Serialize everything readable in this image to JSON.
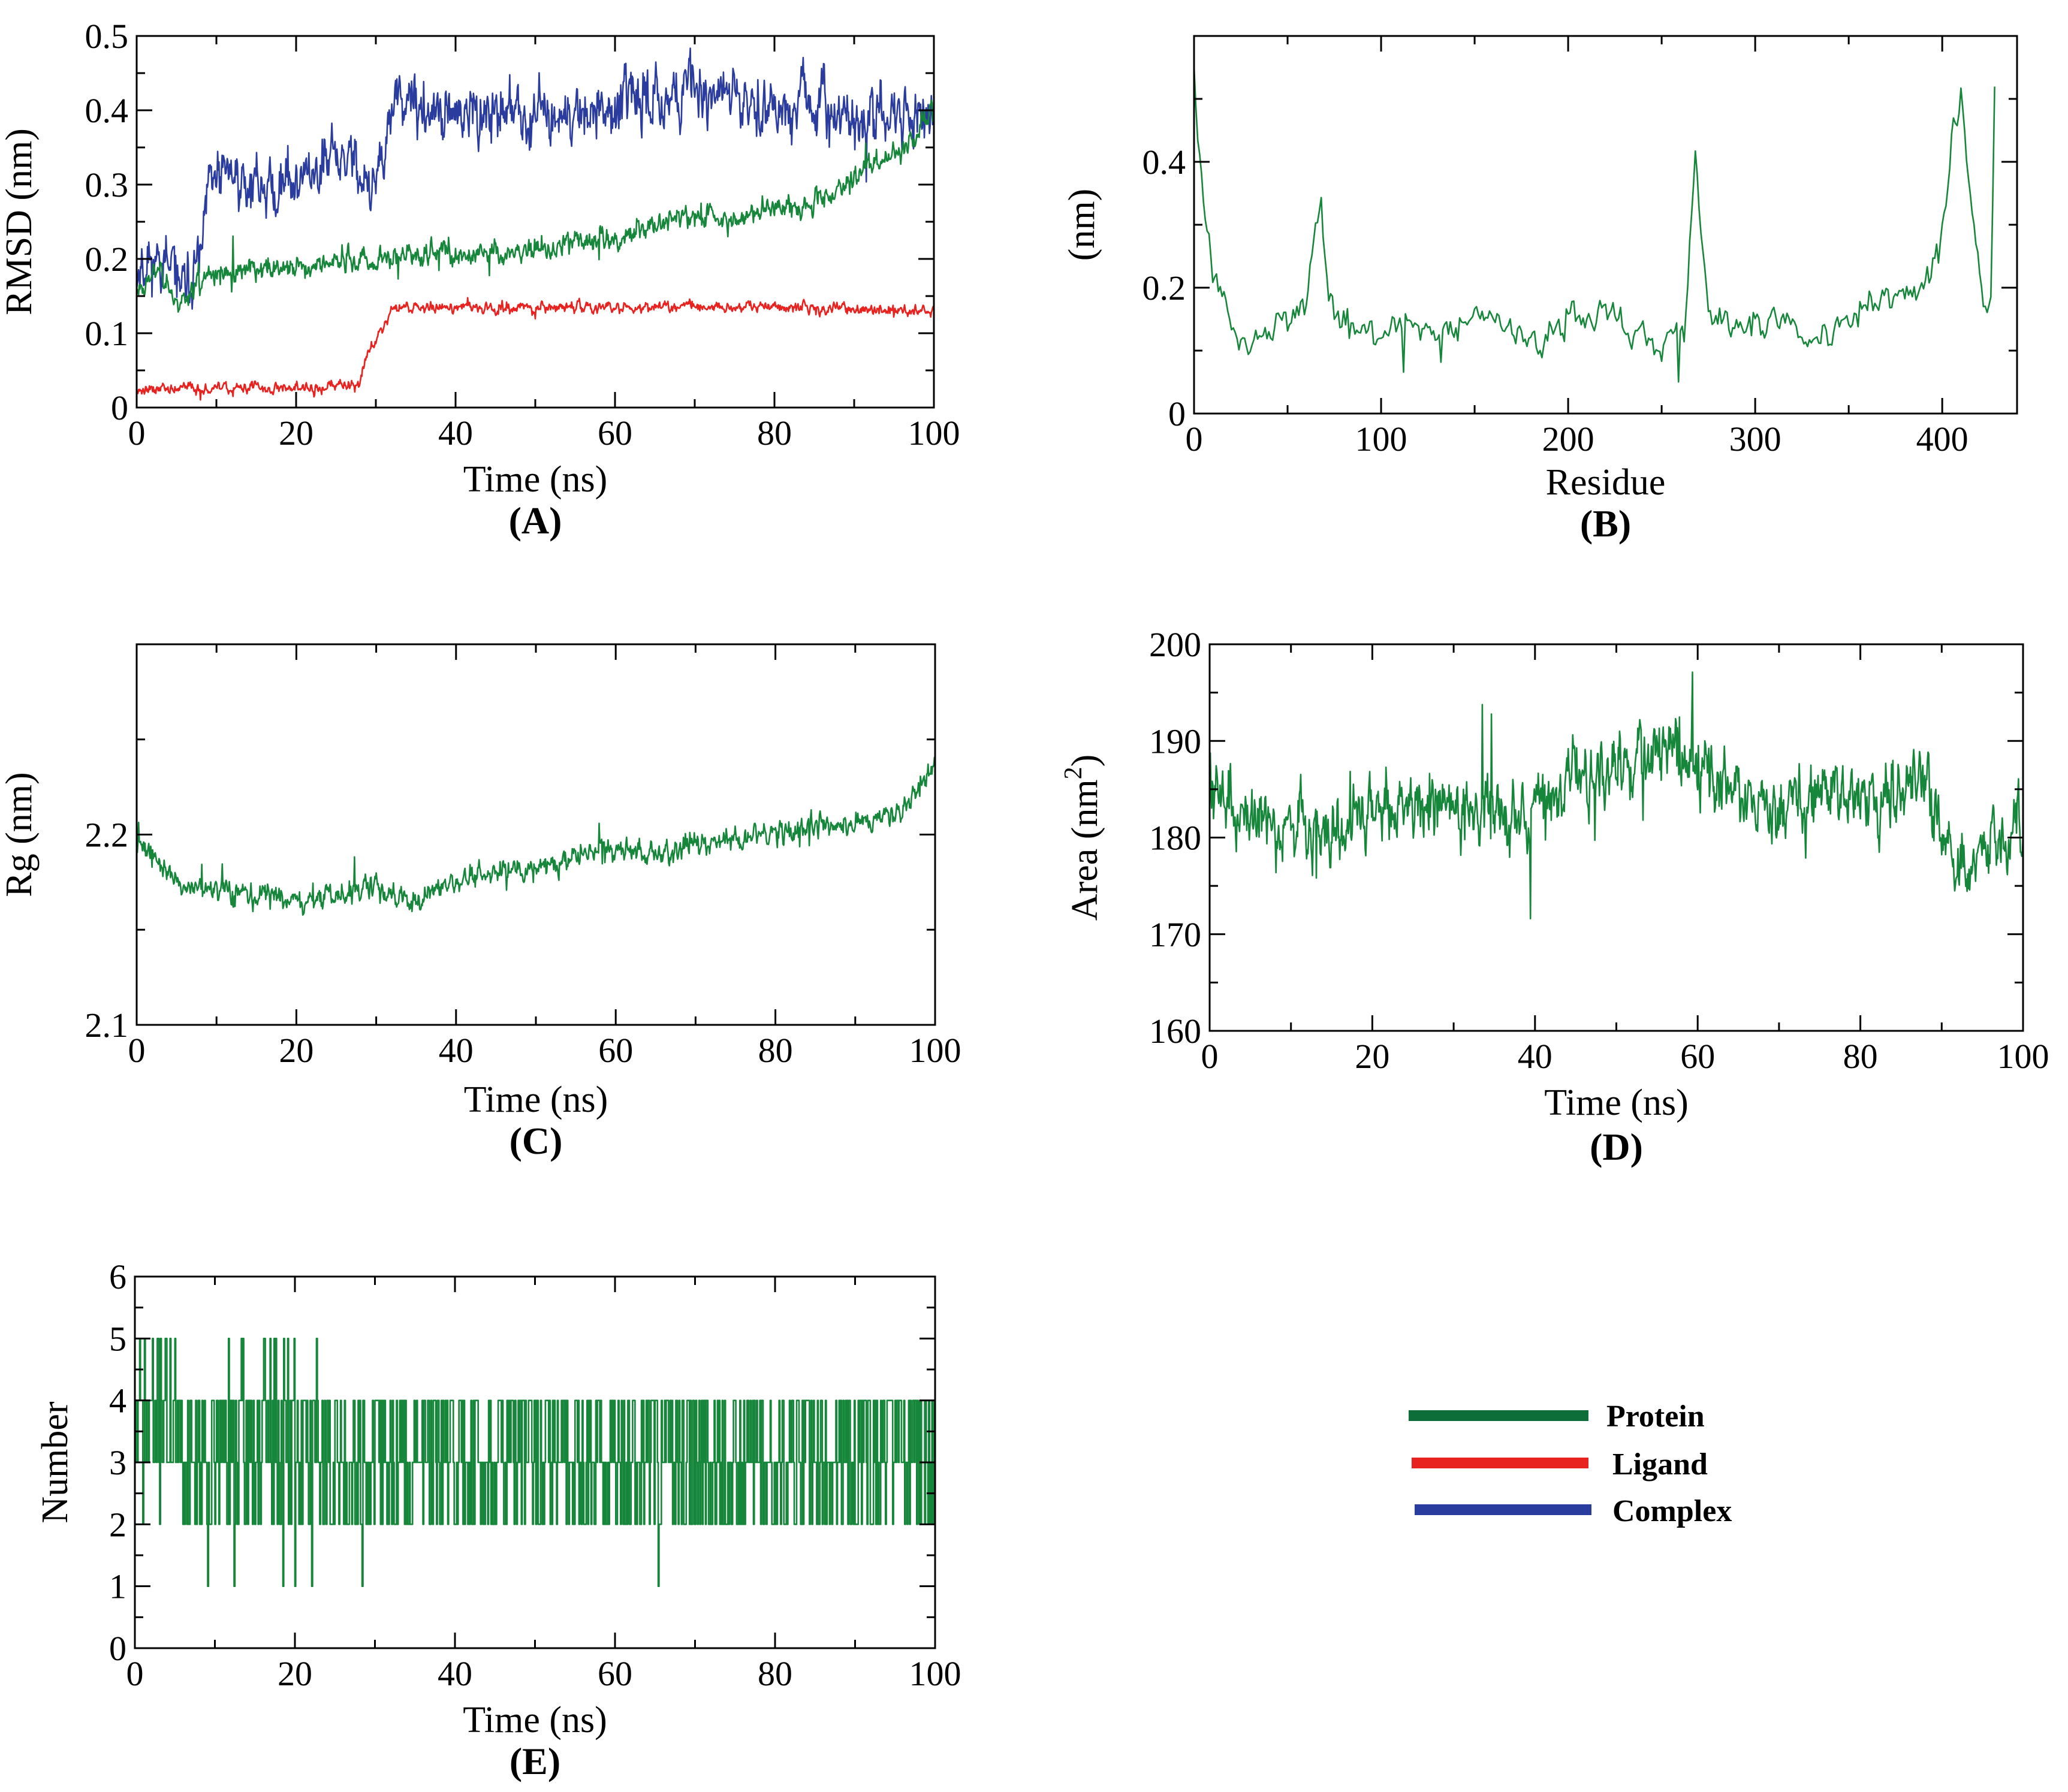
{
  "colors": {
    "protein": "#16873a",
    "ligand": "#e8221f",
    "complex": "#2b3c9f",
    "legend_protein": "#0e6e39"
  },
  "legend": [
    {
      "label": "Protein",
      "color_key": "legend_protein"
    },
    {
      "label": "Ligand",
      "color_key": "ligand"
    },
    {
      "label": "Complex",
      "color_key": "complex"
    }
  ],
  "chart_data": [
    {
      "id": "A",
      "panel_label": "(A)",
      "type": "line",
      "xlabel": "Time (ns)",
      "ylabel": "RMSD (nm)",
      "xlim": [
        0,
        100
      ],
      "ylim": [
        0,
        0.5
      ],
      "xticks": [
        0,
        20,
        40,
        60,
        80,
        100
      ],
      "xtick_labels": [
        "0",
        "20",
        "40",
        "60",
        "80",
        "100"
      ],
      "yticks": [
        0,
        0.1,
        0.2,
        0.3,
        0.4,
        0.5
      ],
      "ytick_labels": [
        "0",
        "0.1",
        "0.2",
        "0.3",
        "0.4",
        "0.5"
      ],
      "series": [
        {
          "name": "Complex",
          "color_key": "complex",
          "noise": 0.045,
          "seed": 11,
          "x": [
            0,
            3,
            6,
            8,
            9,
            12,
            16,
            20,
            24,
            27,
            29,
            31,
            32,
            34,
            40,
            46,
            52,
            58,
            64,
            70,
            76,
            80,
            86,
            92,
            97,
            100
          ],
          "y": [
            0.19,
            0.2,
            0.16,
            0.2,
            0.3,
            0.31,
            0.3,
            0.31,
            0.33,
            0.34,
            0.3,
            0.32,
            0.41,
            0.4,
            0.39,
            0.4,
            0.39,
            0.4,
            0.42,
            0.43,
            0.42,
            0.41,
            0.4,
            0.39,
            0.39,
            0.4
          ]
        },
        {
          "name": "Protein",
          "color_key": "protein",
          "noise": 0.018,
          "seed": 23,
          "x": [
            0,
            3,
            5,
            8,
            10,
            20,
            30,
            40,
            50,
            60,
            66,
            70,
            74,
            80,
            85,
            88,
            92,
            95,
            98,
            100
          ],
          "y": [
            0.16,
            0.19,
            0.14,
            0.17,
            0.18,
            0.19,
            0.2,
            0.21,
            0.21,
            0.23,
            0.25,
            0.26,
            0.25,
            0.27,
            0.28,
            0.29,
            0.33,
            0.34,
            0.37,
            0.4
          ]
        },
        {
          "name": "Ligand",
          "color_key": "ligand",
          "noise": 0.009,
          "seed": 37,
          "x": [
            0,
            10,
            20,
            28,
            29,
            30,
            31,
            32,
            40,
            60,
            80,
            100
          ],
          "y": [
            0.025,
            0.025,
            0.028,
            0.03,
            0.075,
            0.09,
            0.11,
            0.135,
            0.135,
            0.135,
            0.135,
            0.13
          ]
        }
      ]
    },
    {
      "id": "B",
      "panel_label": "(B)",
      "type": "line",
      "xlabel": "Residue",
      "ylabel": "(nm)",
      "xlim": [
        0,
        440
      ],
      "ylim": [
        0,
        0.6
      ],
      "xticks": [
        0,
        100,
        200,
        300,
        400
      ],
      "xtick_labels": [
        "0",
        "100",
        "200",
        "300",
        "400"
      ],
      "yticks": [
        0,
        0.2,
        0.4
      ],
      "ytick_labels": [
        "0",
        "0.2",
        "0.4"
      ],
      "series": [
        {
          "name": "Protein",
          "color_key": "protein",
          "noise": 0.035,
          "seed": 5,
          "step": 1,
          "x": [
            0,
            5,
            12,
            20,
            30,
            45,
            60,
            68,
            72,
            85,
            95,
            110,
            130,
            150,
            170,
            185,
            200,
            215,
            230,
            245,
            262,
            268,
            275,
            290,
            310,
            330,
            350,
            370,
            385,
            398,
            405,
            410,
            415,
            422,
            426,
            428
          ],
          "y": [
            0.55,
            0.32,
            0.22,
            0.15,
            0.11,
            0.15,
            0.17,
            0.33,
            0.18,
            0.14,
            0.1,
            0.15,
            0.13,
            0.17,
            0.12,
            0.11,
            0.15,
            0.16,
            0.13,
            0.1,
            0.13,
            0.41,
            0.16,
            0.13,
            0.15,
            0.12,
            0.16,
            0.17,
            0.2,
            0.25,
            0.42,
            0.5,
            0.35,
            0.18,
            0.2,
            0.54
          ]
        }
      ]
    },
    {
      "id": "C",
      "panel_label": "(C)",
      "type": "line",
      "xlabel": "Time (ns)",
      "ylabel": "Rg (nm)",
      "xlim": [
        0,
        100
      ],
      "ylim": [
        2.1,
        2.3
      ],
      "xticks": [
        0,
        20,
        40,
        60,
        80,
        100
      ],
      "xtick_labels": [
        "0",
        "20",
        "40",
        "60",
        "80",
        "100"
      ],
      "yticks": [
        2.1,
        2.2
      ],
      "ytick_labels": [
        "2.1",
        "2.2"
      ],
      "series": [
        {
          "name": "Protein",
          "color_key": "protein",
          "noise": 0.007,
          "seed": 41,
          "x": [
            0,
            2,
            5,
            10,
            15,
            20,
            25,
            30,
            35,
            40,
            45,
            50,
            55,
            60,
            65,
            70,
            75,
            80,
            85,
            90,
            95,
            98,
            100
          ],
          "y": [
            2.195,
            2.19,
            2.175,
            2.17,
            2.168,
            2.165,
            2.167,
            2.172,
            2.165,
            2.175,
            2.18,
            2.183,
            2.19,
            2.192,
            2.19,
            2.195,
            2.198,
            2.2,
            2.205,
            2.205,
            2.21,
            2.225,
            2.235
          ]
        }
      ]
    },
    {
      "id": "D",
      "panel_label": "(D)",
      "type": "line",
      "xlabel": "Time (ns)",
      "ylabel": "Area (nm",
      "ylabel_sup": "2",
      "ylabel_end": ")",
      "xlim": [
        0,
        100
      ],
      "ylim": [
        160,
        200
      ],
      "xticks": [
        0,
        20,
        40,
        60,
        80,
        100
      ],
      "xtick_labels": [
        "0",
        "20",
        "40",
        "60",
        "80",
        "100"
      ],
      "yticks": [
        160,
        170,
        180,
        190,
        200
      ],
      "ytick_labels": [
        "160",
        "170",
        "180",
        "190",
        "200"
      ],
      "series": [
        {
          "name": "Protein",
          "color_key": "protein",
          "noise": 4.2,
          "seed": 59,
          "x": [
            0,
            3,
            8,
            15,
            20,
            25,
            30,
            35,
            40,
            45,
            50,
            55,
            58,
            62,
            66,
            70,
            75,
            80,
            85,
            88,
            91,
            93,
            96,
            100
          ],
          "y": [
            187,
            183,
            182,
            181,
            183,
            184,
            183,
            182,
            183,
            186,
            187,
            190,
            190,
            186,
            184,
            184,
            185,
            184,
            185,
            185,
            178,
            176,
            179,
            181
          ]
        }
      ]
    },
    {
      "id": "E",
      "panel_label": "(E)",
      "type": "line",
      "xlabel": "Time (ns)",
      "ylabel": "Number",
      "xlim": [
        0,
        100
      ],
      "ylim": [
        0,
        6
      ],
      "xticks": [
        0,
        20,
        40,
        60,
        80,
        100
      ],
      "xtick_labels": [
        "0",
        "20",
        "40",
        "60",
        "80",
        "100"
      ],
      "yticks": [
        0,
        1,
        2,
        3,
        4,
        5,
        6
      ],
      "ytick_labels": [
        "0",
        "1",
        "2",
        "3",
        "4",
        "5",
        "6"
      ],
      "series": [
        {
          "name": "Protein",
          "color_key": "protein",
          "discrete": true,
          "seed": 71,
          "levels": [
            1,
            2,
            3,
            4,
            5
          ],
          "segments": [
            {
              "from": 0,
              "to": 5,
              "weights": [
                0,
                0.05,
                0.35,
                0.35,
                0.25
              ]
            },
            {
              "from": 5,
              "to": 9,
              "weights": [
                0,
                0.15,
                0.45,
                0.4,
                0
              ]
            },
            {
              "from": 9,
              "to": 23,
              "weights": [
                0.03,
                0.25,
                0.32,
                0.3,
                0.1
              ]
            },
            {
              "from": 23,
              "to": 100,
              "weights": [
                0.004,
                0.32,
                0.34,
                0.336,
                0
              ]
            }
          ]
        }
      ]
    }
  ]
}
